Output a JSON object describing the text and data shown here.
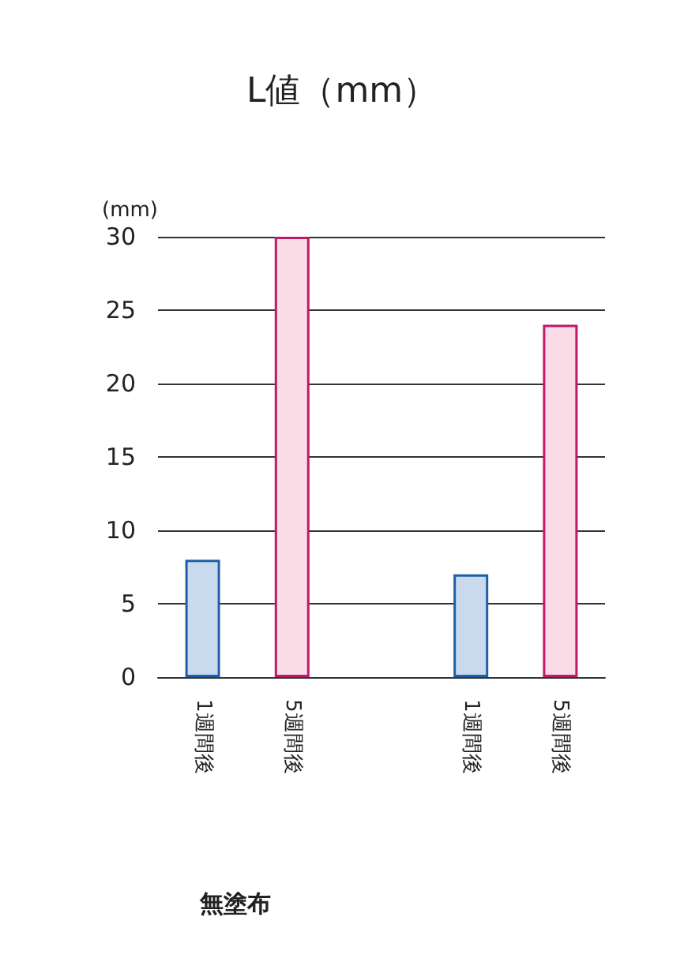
{
  "chart_data": {
    "type": "bar",
    "title": "L値（mm）",
    "ylabel": "(mm)",
    "categories": [
      "1週間後",
      "5週間後",
      null,
      "1週間後",
      "5週間後"
    ],
    "values": [
      8,
      30,
      null,
      7,
      24
    ],
    "colors": [
      "#c9d9ee",
      "#f9dce6",
      null,
      "#c9d9ee",
      "#f9dce6"
    ],
    "ylim": [
      0,
      30
    ],
    "yticks": [
      0,
      5,
      10,
      15,
      20,
      25,
      30
    ],
    "grid": "y",
    "annotations": [
      "無塗布"
    ]
  }
}
